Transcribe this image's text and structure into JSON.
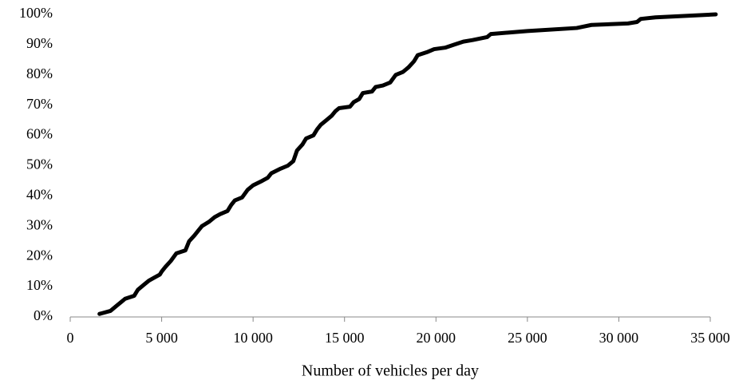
{
  "chart_data": {
    "type": "line",
    "x_label": "Number of vehicles per day",
    "x": [
      1600,
      2200,
      2500,
      2800,
      3000,
      3500,
      3700,
      4000,
      4300,
      4600,
      4900,
      5000,
      5200,
      5500,
      5800,
      6300,
      6500,
      6800,
      7000,
      7200,
      7600,
      7900,
      8200,
      8600,
      8800,
      9000,
      9400,
      9700,
      10000,
      10500,
      10800,
      11000,
      11500,
      11900,
      12200,
      12400,
      12700,
      12900,
      13300,
      13500,
      13700,
      14000,
      14300,
      14500,
      14700,
      15300,
      15500,
      15800,
      16000,
      16500,
      16700,
      17100,
      17500,
      17800,
      18200,
      18500,
      18800,
      19000,
      19500,
      19900,
      20500,
      21000,
      21500,
      22000,
      22800,
      23000,
      24000,
      25000,
      27700,
      28500,
      30500,
      31000,
      31200,
      32000,
      35300
    ],
    "values": [
      1,
      2,
      3.5,
      5,
      6,
      7,
      9,
      10.5,
      12,
      13,
      14,
      15,
      16.5,
      18.5,
      21,
      22,
      25,
      27,
      28.5,
      30,
      31.5,
      33,
      34,
      35,
      37,
      38.5,
      39.5,
      42,
      43.5,
      45,
      46,
      47.5,
      49,
      50,
      51.5,
      55,
      57,
      59,
      60,
      62,
      63.5,
      65,
      66.5,
      68,
      69,
      69.5,
      71,
      72,
      74,
      74.5,
      76,
      76.5,
      77.5,
      80,
      81,
      82.5,
      84.5,
      86.5,
      87.5,
      88.5,
      89,
      90,
      91,
      91.5,
      92.5,
      93.5,
      94,
      94.5,
      95.5,
      96.5,
      97,
      97.5,
      98.5,
      99,
      100
    ],
    "color": "#000000",
    "xlim": [
      0,
      35000
    ],
    "xticks": [
      0,
      {
        "value": 5000,
        "label": "5 000"
      },
      {
        "value": 10000,
        "label": "10 000"
      },
      {
        "value": 15000,
        "label": "15 000"
      },
      {
        "value": 20000,
        "label": "20 000"
      },
      {
        "value": 25000,
        "label": "25 000"
      },
      {
        "value": 30000,
        "label": "30 000"
      },
      {
        "value": 35000,
        "label": "35 000"
      }
    ],
    "ylim": [
      0,
      100
    ],
    "yticks": [
      {
        "value": 0,
        "label": "0%"
      },
      {
        "value": 10,
        "label": "10%"
      },
      {
        "value": 20,
        "label": "20%"
      },
      {
        "value": 30,
        "label": "30%"
      },
      {
        "value": 40,
        "label": "40%"
      },
      {
        "value": 50,
        "label": "50%"
      },
      {
        "value": 60,
        "label": "60%"
      },
      {
        "value": 70,
        "label": "70%"
      },
      {
        "value": 80,
        "label": "80%"
      },
      {
        "value": 90,
        "label": "90%"
      },
      {
        "value": 100,
        "label": "100%"
      }
    ],
    "grid": false
  }
}
